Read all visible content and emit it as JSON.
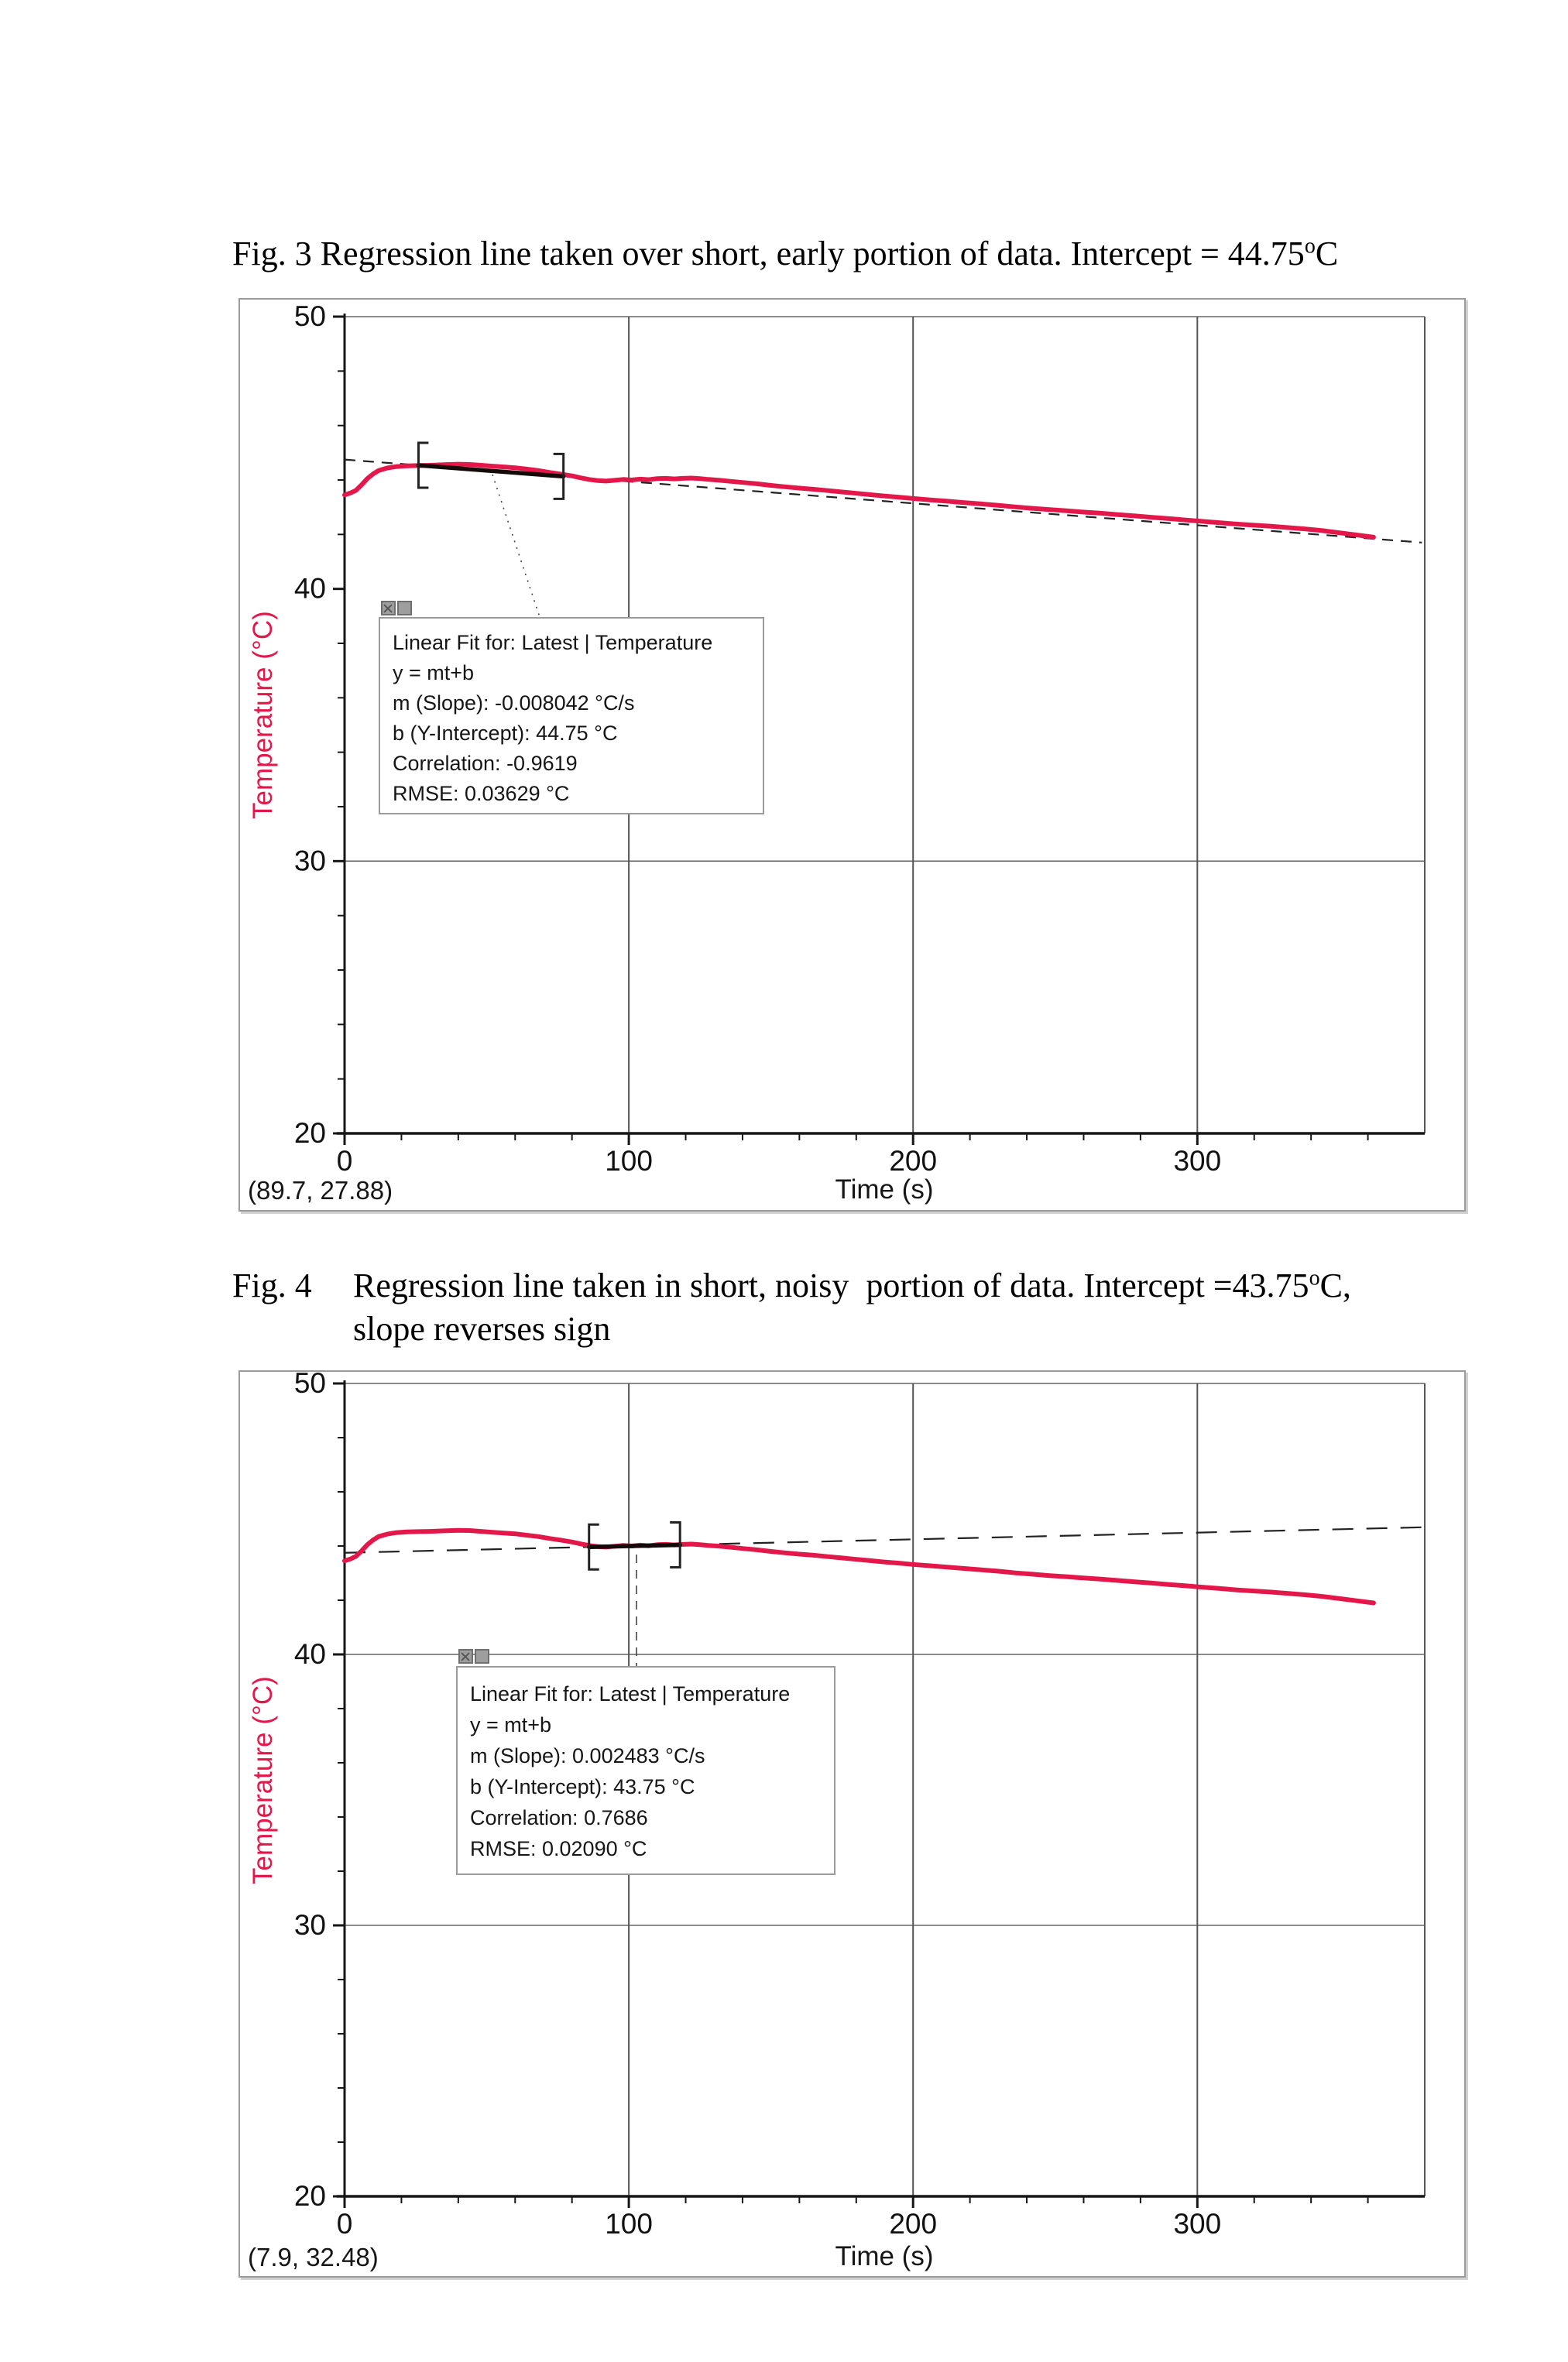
{
  "document": {
    "caption_fig3": {
      "fig_label": "Fig. 3",
      "text_pre": " Regression line taken over short, early portion of data. Intercept = 44.75",
      "sup": "o",
      "text_post": "C"
    },
    "caption_fig4": {
      "fig_label": "Fig. 4",
      "line1_pre": "Regression line taken in short, noisy  portion of data. Intercept =43.75",
      "sup": "o",
      "line1_post": "C,",
      "line2": "slope reverses sign"
    }
  },
  "colors": {
    "curve": "#e4174b",
    "axis": "#161616",
    "grid": "#666666",
    "fit_dash": "#222222",
    "fit_selected_segment": "#140a0a",
    "legend_border": "#9a9a9a",
    "close_button_fill": "#9e9e9e"
  },
  "chart_data": [
    {
      "type": "line",
      "title": "",
      "xlabel": "Time (s)",
      "ylabel": "Temperature (°C)",
      "xlim": [
        0,
        380
      ],
      "ylim": [
        20,
        50
      ],
      "x_major_ticks": [
        0,
        100,
        200,
        300
      ],
      "x_minor_step": 20,
      "y_major_ticks": [
        50,
        40,
        30,
        20
      ],
      "y_minor_step": 2,
      "grid_x": [
        100,
        200,
        300
      ],
      "grid_y": [
        50,
        30
      ],
      "legend_position": "inside upper-left, below fit region",
      "cursor_readout": "(89.7, 27.88)",
      "fit": {
        "label": "Linear Fit for: Latest | Temperature",
        "equation": "y = mt+b",
        "slope": -0.008042,
        "slope_units": "°C/s",
        "y_intercept": 44.75,
        "intercept_units": "°C",
        "correlation": -0.9619,
        "rmse": 0.03629,
        "rmse_units": "°C",
        "selection_range_t": [
          26,
          77
        ],
        "line_extent_t": [
          0,
          379
        ]
      },
      "fit_box_lines": [
        "Linear Fit for: Latest | Temperature",
        "y = mt+b",
        "m (Slope): -0.008042 °C/s",
        "b (Y-Intercept): 44.75 °C",
        "Correlation: -0.9619",
        "RMSE: 0.03629 °C"
      ],
      "series": [
        {
          "name": "Latest | Temperature",
          "color": "#e4174b",
          "t": [
            0,
            2,
            4,
            6,
            8,
            10,
            12,
            15,
            18,
            22,
            26,
            30,
            35,
            40,
            44,
            48,
            52,
            56,
            60,
            64,
            68,
            72,
            76,
            80,
            83,
            86,
            89,
            92,
            95,
            98,
            101,
            104,
            107,
            110,
            113,
            116,
            119,
            122,
            125,
            128,
            132,
            136,
            140,
            145,
            150,
            155,
            160,
            165,
            170,
            175,
            180,
            185,
            190,
            195,
            200,
            206,
            212,
            218,
            224,
            230,
            236,
            242,
            248,
            254,
            260,
            266,
            272,
            278,
            284,
            290,
            296,
            302,
            308,
            314,
            320,
            326,
            332,
            338,
            344,
            350,
            356,
            362
          ],
          "temp": [
            43.45,
            43.52,
            43.62,
            43.82,
            44.05,
            44.22,
            44.35,
            44.44,
            44.49,
            44.52,
            44.53,
            44.54,
            44.56,
            44.58,
            44.57,
            44.54,
            44.51,
            44.48,
            44.45,
            44.4,
            44.35,
            44.28,
            44.22,
            44.15,
            44.08,
            44.02,
            43.98,
            43.96,
            43.99,
            44.02,
            44.0,
            44.03,
            44.01,
            44.05,
            44.06,
            44.04,
            44.06,
            44.07,
            44.05,
            44.02,
            43.99,
            43.95,
            43.91,
            43.86,
            43.8,
            43.75,
            43.7,
            43.66,
            43.61,
            43.56,
            43.51,
            43.46,
            43.41,
            43.37,
            43.32,
            43.27,
            43.22,
            43.17,
            43.12,
            43.07,
            43.01,
            42.96,
            42.91,
            42.87,
            42.82,
            42.78,
            42.73,
            42.68,
            42.63,
            42.58,
            42.53,
            42.48,
            42.43,
            42.38,
            42.34,
            42.3,
            42.25,
            42.2,
            42.14,
            42.06,
            41.98,
            41.9
          ]
        }
      ]
    },
    {
      "type": "line",
      "title": "",
      "xlabel": "Time (s)",
      "ylabel": "Temperature (°C)",
      "xlim": [
        0,
        380
      ],
      "ylim": [
        20,
        50
      ],
      "x_major_ticks": [
        0,
        100,
        200,
        300
      ],
      "x_minor_step": 20,
      "y_major_ticks": [
        50,
        40,
        30,
        20
      ],
      "y_minor_step": 2,
      "grid_x": [
        100,
        200,
        300
      ],
      "grid_y": [
        50,
        40,
        30
      ],
      "legend_position": "inside center-left, below fit region",
      "cursor_readout": "(7.9, 32.48)",
      "fit": {
        "label": "Linear Fit for: Latest | Temperature",
        "equation": "y = mt+b",
        "slope": 0.002483,
        "slope_units": "°C/s",
        "y_intercept": 43.75,
        "intercept_units": "°C",
        "correlation": 0.7686,
        "rmse": 0.0209,
        "rmse_units": "°C",
        "selection_range_t": [
          86,
          118
        ],
        "line_extent_t": [
          0,
          379
        ]
      },
      "fit_box_lines": [
        "Linear Fit for: Latest | Temperature",
        "y = mt+b",
        "m (Slope): 0.002483 °C/s",
        "b (Y-Intercept): 43.75 °C",
        "Correlation: 0.7686",
        "RMSE: 0.02090 °C"
      ],
      "series": [
        {
          "name": "Latest | Temperature",
          "color": "#e4174b",
          "t": [
            0,
            2,
            4,
            6,
            8,
            10,
            12,
            15,
            18,
            22,
            26,
            30,
            35,
            40,
            44,
            48,
            52,
            56,
            60,
            64,
            68,
            72,
            76,
            80,
            83,
            86,
            89,
            92,
            95,
            98,
            101,
            104,
            107,
            110,
            113,
            116,
            119,
            122,
            125,
            128,
            132,
            136,
            140,
            145,
            150,
            155,
            160,
            165,
            170,
            175,
            180,
            185,
            190,
            195,
            200,
            206,
            212,
            218,
            224,
            230,
            236,
            242,
            248,
            254,
            260,
            266,
            272,
            278,
            284,
            290,
            296,
            302,
            308,
            314,
            320,
            326,
            332,
            338,
            344,
            350,
            356,
            362
          ],
          "temp": [
            43.45,
            43.52,
            43.62,
            43.82,
            44.05,
            44.22,
            44.35,
            44.44,
            44.49,
            44.52,
            44.53,
            44.54,
            44.56,
            44.58,
            44.57,
            44.54,
            44.51,
            44.48,
            44.45,
            44.4,
            44.35,
            44.28,
            44.22,
            44.15,
            44.08,
            44.02,
            43.98,
            43.96,
            43.99,
            44.02,
            44.0,
            44.03,
            44.01,
            44.05,
            44.06,
            44.04,
            44.06,
            44.07,
            44.05,
            44.02,
            43.99,
            43.95,
            43.91,
            43.86,
            43.8,
            43.75,
            43.7,
            43.66,
            43.61,
            43.56,
            43.51,
            43.46,
            43.41,
            43.37,
            43.32,
            43.27,
            43.22,
            43.17,
            43.12,
            43.07,
            43.01,
            42.96,
            42.91,
            42.87,
            42.82,
            42.78,
            42.73,
            42.68,
            42.63,
            42.58,
            42.53,
            42.48,
            42.43,
            42.38,
            42.34,
            42.3,
            42.25,
            42.2,
            42.14,
            42.06,
            41.98,
            41.9
          ]
        }
      ]
    }
  ]
}
